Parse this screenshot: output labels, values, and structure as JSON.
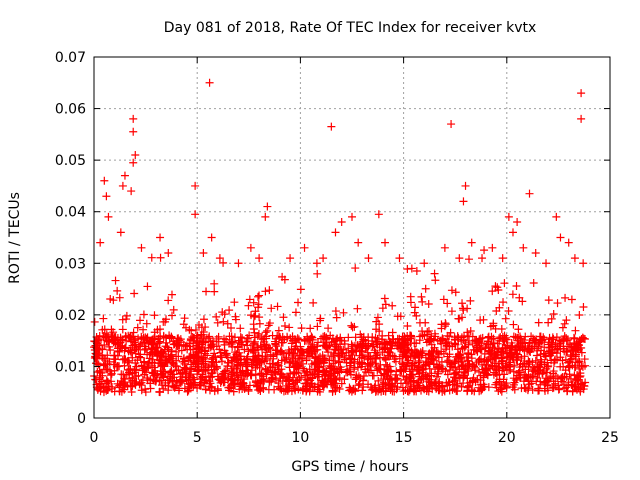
{
  "chart_data": {
    "type": "scatter",
    "title": "Day 081 of 2018, Rate Of TEC Index for receiver kvtx",
    "xlabel": "GPS time / hours",
    "ylabel": "ROTI / TECUs",
    "xlim": [
      0,
      25
    ],
    "ylim": [
      0,
      0.07
    ],
    "x_ticks": [
      0,
      5,
      10,
      15,
      20,
      25
    ],
    "y_ticks": [
      0,
      0.01,
      0.02,
      0.03,
      0.04,
      0.05,
      0.06,
      0.07
    ],
    "x_tick_labels": [
      "0",
      "5",
      "10",
      "15",
      "20",
      "25"
    ],
    "y_tick_labels": [
      "0",
      "0.01",
      "0.02",
      "0.03",
      "0.04",
      "0.05",
      "0.06",
      "0.07"
    ],
    "grid": true,
    "marker": "+",
    "marker_color": "#ff0000",
    "series": [
      {
        "name": "ROTI",
        "color": "#ff0000",
        "points": [
          [
            5.6,
            0.065
          ],
          [
            23.6,
            0.063
          ],
          [
            23.6,
            0.058
          ],
          [
            11.5,
            0.0565
          ],
          [
            17.3,
            0.057
          ],
          [
            1.9,
            0.058
          ],
          [
            1.9,
            0.0555
          ],
          [
            2.0,
            0.051
          ],
          [
            1.9,
            0.0495
          ],
          [
            1.5,
            0.047
          ],
          [
            1.4,
            0.045
          ],
          [
            1.8,
            0.044
          ],
          [
            0.5,
            0.046
          ],
          [
            0.6,
            0.043
          ],
          [
            4.9,
            0.045
          ],
          [
            4.9,
            0.0395
          ],
          [
            8.4,
            0.041
          ],
          [
            8.3,
            0.039
          ],
          [
            18.0,
            0.045
          ],
          [
            17.9,
            0.042
          ],
          [
            21.1,
            0.0435
          ],
          [
            20.1,
            0.039
          ],
          [
            20.5,
            0.038
          ],
          [
            22.4,
            0.039
          ],
          [
            12.5,
            0.039
          ],
          [
            13.8,
            0.0395
          ],
          [
            12.0,
            0.038
          ],
          [
            11.7,
            0.036
          ],
          [
            0.3,
            0.034
          ],
          [
            0.7,
            0.039
          ],
          [
            1.3,
            0.036
          ],
          [
            2.3,
            0.033
          ],
          [
            3.2,
            0.035
          ],
          [
            3.6,
            0.032
          ],
          [
            5.3,
            0.032
          ],
          [
            5.7,
            0.035
          ],
          [
            6.1,
            0.031
          ],
          [
            7.0,
            0.03
          ],
          [
            7.6,
            0.033
          ],
          [
            8.0,
            0.031
          ],
          [
            9.5,
            0.031
          ],
          [
            10.2,
            0.033
          ],
          [
            10.8,
            0.03
          ],
          [
            11.1,
            0.031
          ],
          [
            12.8,
            0.034
          ],
          [
            13.3,
            0.031
          ],
          [
            14.1,
            0.034
          ],
          [
            14.8,
            0.031
          ],
          [
            15.4,
            0.029
          ],
          [
            16.0,
            0.03
          ],
          [
            16.5,
            0.028
          ],
          [
            17.0,
            0.033
          ],
          [
            17.7,
            0.031
          ],
          [
            18.3,
            0.034
          ],
          [
            18.8,
            0.031
          ],
          [
            19.3,
            0.033
          ],
          [
            19.8,
            0.031
          ],
          [
            20.3,
            0.036
          ],
          [
            20.8,
            0.033
          ],
          [
            21.4,
            0.032
          ],
          [
            21.9,
            0.03
          ],
          [
            22.6,
            0.035
          ],
          [
            23.0,
            0.034
          ],
          [
            23.3,
            0.031
          ],
          [
            23.7,
            0.03
          ]
        ]
      }
    ]
  }
}
